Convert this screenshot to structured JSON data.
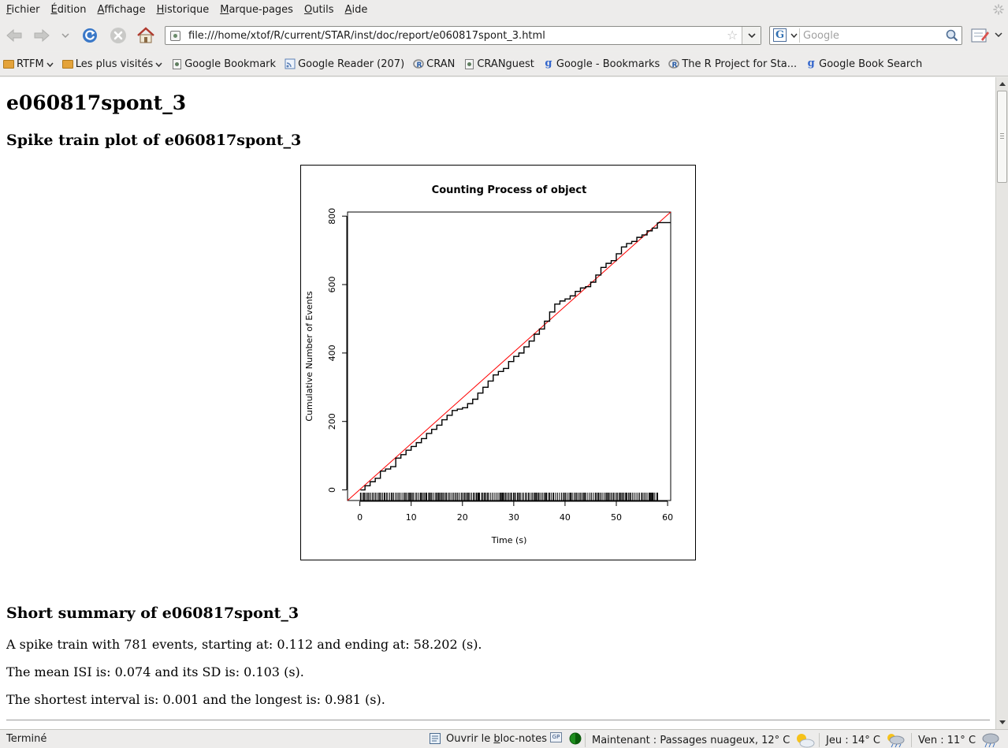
{
  "menubar": {
    "items": [
      {
        "first": "F",
        "rest": "ichier"
      },
      {
        "first": "É",
        "rest": "dition"
      },
      {
        "first": "A",
        "rest": "ffichage"
      },
      {
        "first": "H",
        "rest": "istorique"
      },
      {
        "first": "M",
        "rest": "arque-pages"
      },
      {
        "first": "O",
        "rest": "utils"
      },
      {
        "first": "A",
        "rest": "ide"
      }
    ]
  },
  "navbar": {
    "url": "file:///home/xtof/R/current/STAR/inst/doc/report/e060817spont_3.html",
    "search_placeholder": "Google",
    "search_engine_letter": "G"
  },
  "bookmarks": [
    {
      "label": "RTFM",
      "icon": "folder-icon",
      "dropdown": true
    },
    {
      "label": "Les plus visités",
      "icon": "smart-folder-icon",
      "dropdown": true
    },
    {
      "label": "Google Bookmark",
      "icon": "page-icon",
      "dropdown": false
    },
    {
      "label": "Google Reader (207)",
      "icon": "feed-icon",
      "dropdown": false
    },
    {
      "label": "CRAN",
      "icon": "r-logo-icon",
      "dropdown": false
    },
    {
      "label": "CRANguest",
      "icon": "page-icon",
      "dropdown": false
    },
    {
      "label": "Google - Bookmarks",
      "icon": "google-g-icon",
      "dropdown": false
    },
    {
      "label": "The R Project for Sta...",
      "icon": "r-logo-icon",
      "dropdown": false
    },
    {
      "label": "Google Book Search",
      "icon": "google-g-icon",
      "dropdown": false
    }
  ],
  "page": {
    "title": "e060817spont_3",
    "plot_heading": "Spike train plot of e060817spont_3",
    "summary_heading": "Short summary of e060817spont_3",
    "summary_lines": [
      "A spike train with 781 events, starting at: 0.112 and ending at: 58.202 (s).",
      "The mean ISI is: 0.074 and its SD is: 0.103 (s).",
      "The shortest interval is: 0.001 and the longest is: 0.981 (s)."
    ]
  },
  "chart_data": {
    "type": "line",
    "title": "Counting Process of object",
    "xlabel": "Time (s)",
    "ylabel": "Cumulative Number of Events",
    "xlim": [
      -2.4,
      60.6
    ],
    "ylim": [
      -31,
      812
    ],
    "x_ticks": [
      0,
      10,
      20,
      30,
      40,
      50,
      60
    ],
    "y_ticks": [
      0,
      200,
      400,
      600,
      800
    ],
    "grid": false,
    "legend": "none",
    "series": [
      {
        "color": "#000000",
        "x": [
          0.112,
          1,
          2,
          3,
          4,
          5,
          6,
          7,
          8,
          9,
          10,
          11,
          12,
          13,
          14,
          15,
          16,
          17,
          18,
          19,
          20,
          21,
          22,
          23,
          24,
          25,
          26,
          27,
          28,
          29,
          30,
          31,
          32,
          33,
          34,
          35,
          36,
          37,
          38,
          39,
          40,
          41,
          42,
          43,
          44,
          45,
          46,
          47,
          48,
          49,
          50,
          51,
          52,
          53,
          54,
          55,
          56,
          57,
          58,
          58.202,
          60.6
        ],
        "y": [
          0,
          12,
          24,
          34,
          55,
          61,
          68,
          93,
          103,
          116,
          127,
          138,
          150,
          165,
          177,
          189,
          205,
          218,
          232,
          236,
          240,
          252,
          265,
          283,
          300,
          318,
          336,
          346,
          355,
          375,
          390,
          400,
          418,
          435,
          455,
          470,
          493,
          520,
          543,
          552,
          558,
          567,
          580,
          590,
          594,
          607,
          628,
          650,
          662,
          670,
          690,
          710,
          720,
          726,
          738,
          745,
          757,
          765,
          780,
          781,
          781
        ]
      },
      {
        "color": "#ff0000",
        "x": [
          -2.4,
          60.6
        ],
        "y": [
          -31,
          812
        ]
      }
    ],
    "rug": {
      "color": "#000000",
      "position": "bottom",
      "x_range": [
        0.112,
        58.202
      ]
    }
  },
  "statusbar": {
    "status": "Terminé",
    "notepad": {
      "prefix": "Ouvrir le ",
      "mnemonic": "b",
      "suffix": "loc-notes"
    },
    "gp_label": "GP",
    "weather_now": "Maintenant : Passages nuageux, 12° C",
    "weather_thu": "Jeu : 14° C",
    "weather_fri": "Ven : 11° C"
  },
  "colors": {
    "chrome_bg": "#edeceb",
    "page_bg": "#ffffff",
    "cumulative_line": "#000000",
    "reference_line": "#ff0000"
  }
}
